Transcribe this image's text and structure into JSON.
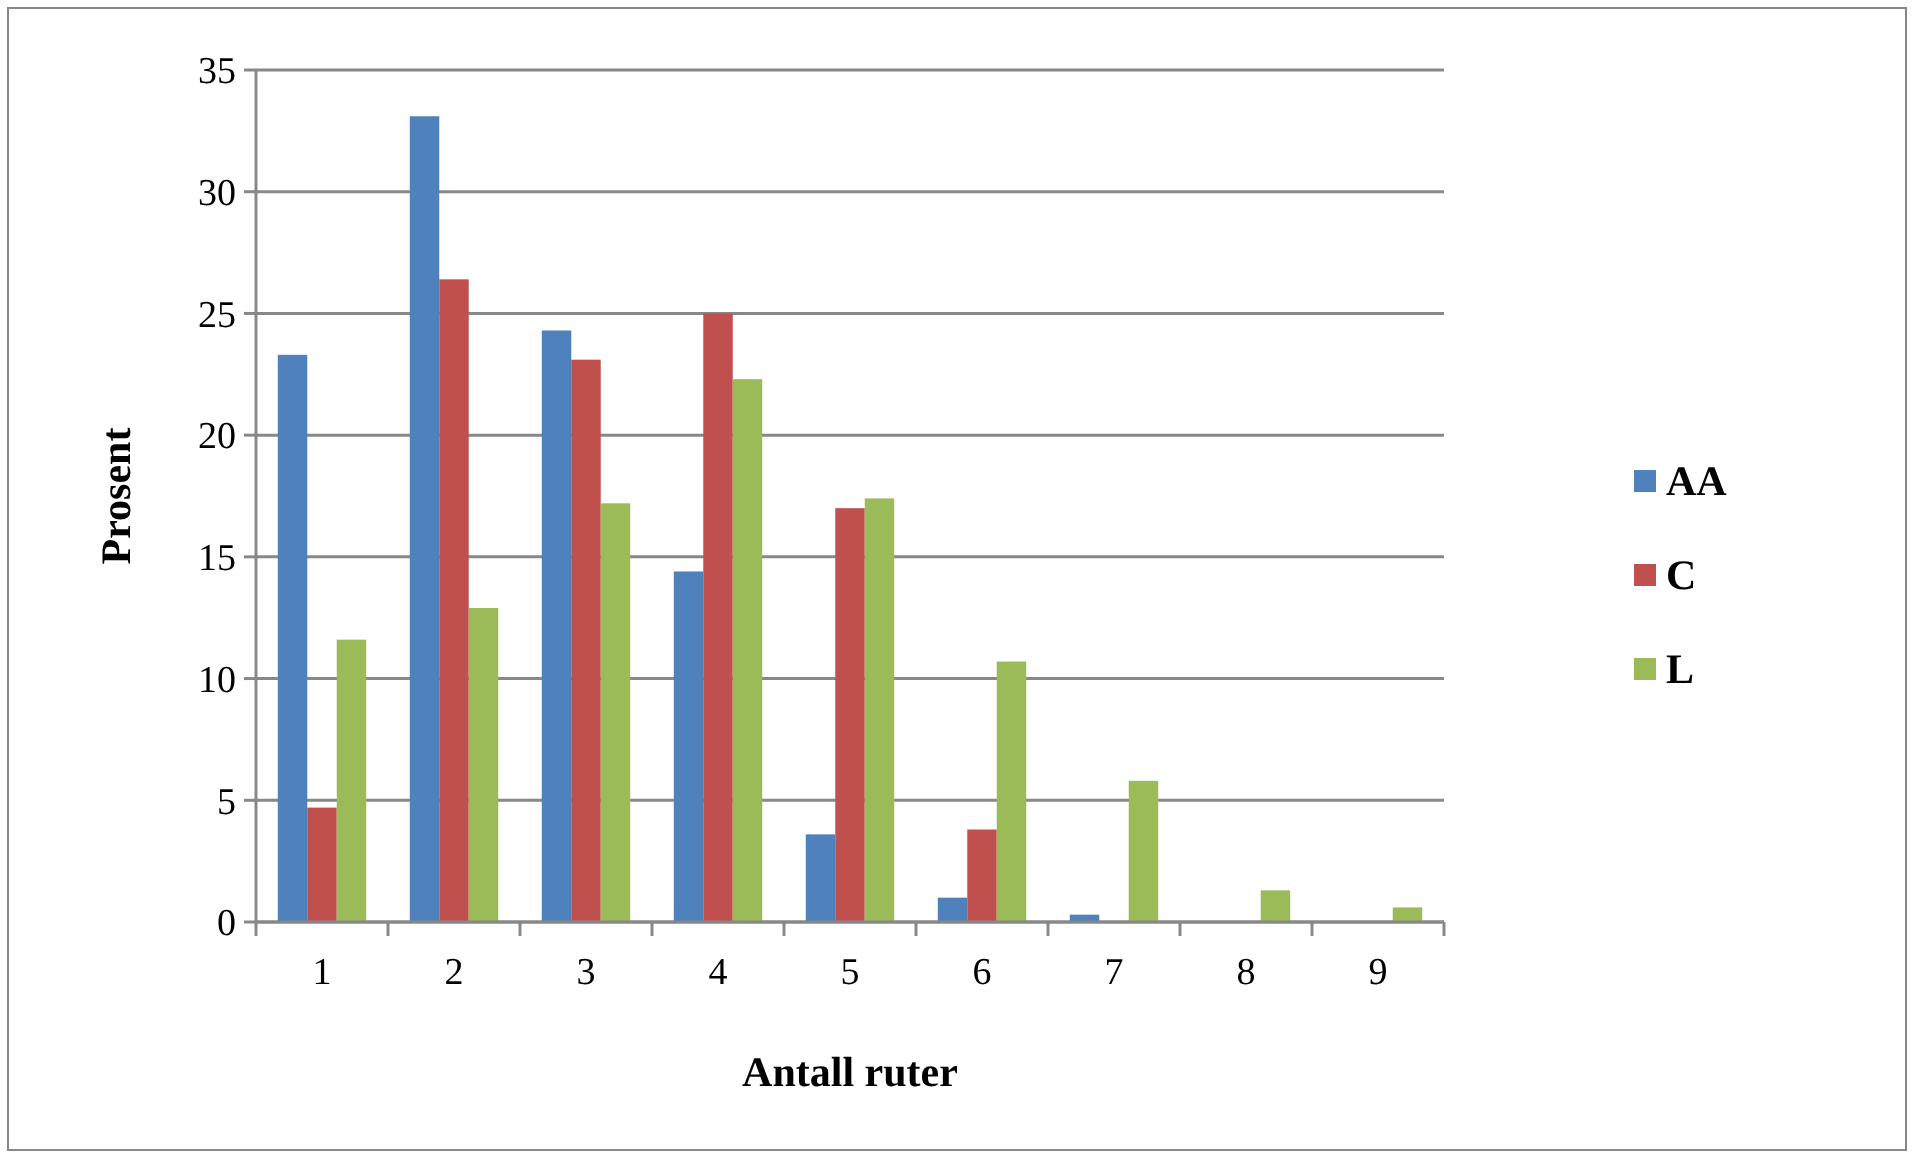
{
  "chart_data": {
    "type": "bar",
    "xlabel": "Antall ruter",
    "ylabel": "Prosent",
    "categories": [
      "1",
      "2",
      "3",
      "4",
      "5",
      "6",
      "7",
      "8",
      "9"
    ],
    "series": [
      {
        "name": "AA",
        "color": "#4f81bd",
        "values": [
          23.3,
          33.1,
          24.3,
          14.4,
          3.6,
          1.0,
          0.3,
          0,
          0
        ]
      },
      {
        "name": "C",
        "color": "#c0504d",
        "values": [
          4.7,
          26.4,
          23.1,
          25.0,
          17.0,
          3.8,
          0,
          0,
          0
        ]
      },
      {
        "name": "L",
        "color": "#9bbb59",
        "values": [
          11.6,
          12.9,
          17.2,
          22.3,
          17.4,
          10.7,
          5.8,
          1.3,
          0.6
        ]
      }
    ],
    "ylim": [
      0,
      35
    ],
    "yticks": [
      0,
      5,
      10,
      15,
      20,
      25,
      30,
      35
    ],
    "grid": "y",
    "legend": "right"
  }
}
